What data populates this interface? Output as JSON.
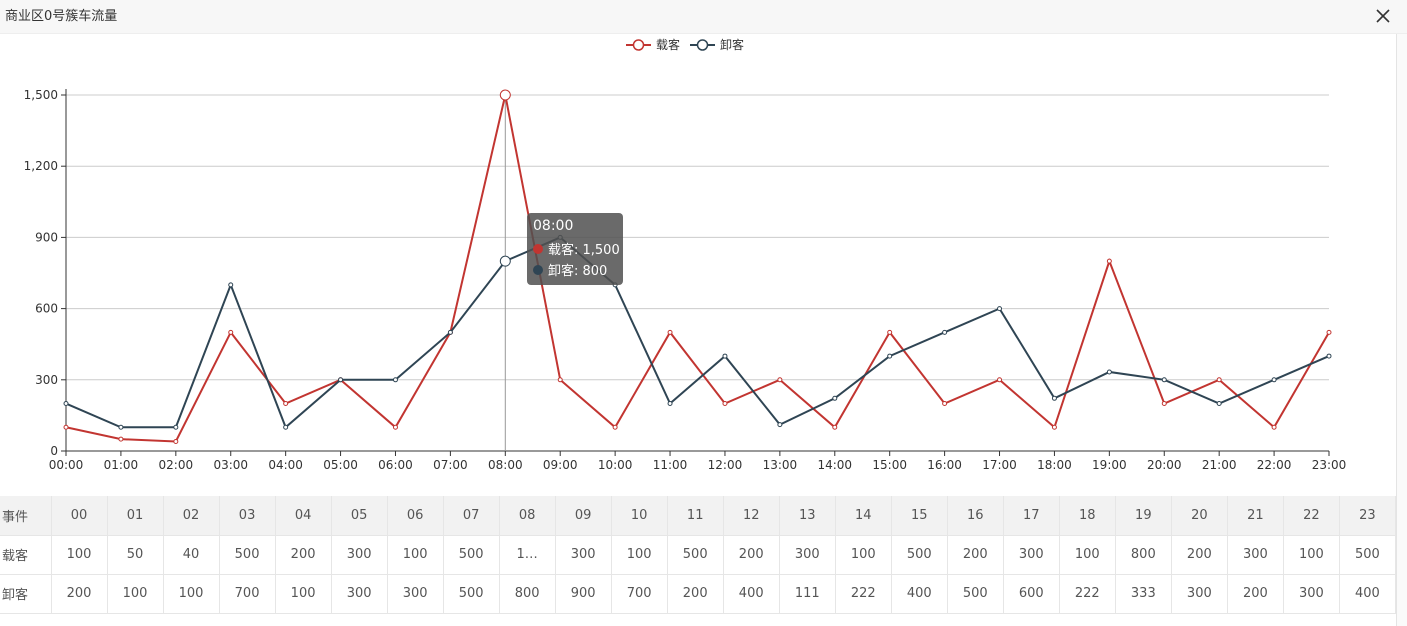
{
  "window": {
    "title": "商业区0号簇车流量",
    "close_icon": "close-icon"
  },
  "chart_data": {
    "type": "line",
    "categories": [
      "00:00",
      "01:00",
      "02:00",
      "03:00",
      "04:00",
      "05:00",
      "06:00",
      "07:00",
      "08:00",
      "09:00",
      "10:00",
      "11:00",
      "12:00",
      "13:00",
      "14:00",
      "15:00",
      "16:00",
      "17:00",
      "18:00",
      "19:00",
      "20:00",
      "21:00",
      "22:00",
      "23:00"
    ],
    "series": [
      {
        "name": "载客",
        "color": "#c23531",
        "values": [
          100,
          50,
          40,
          500,
          200,
          300,
          100,
          500,
          1500,
          300,
          100,
          500,
          200,
          300,
          100,
          500,
          200,
          300,
          100,
          800,
          200,
          300,
          100,
          500
        ]
      },
      {
        "name": "卸客",
        "color": "#2f4554",
        "values": [
          200,
          100,
          100,
          700,
          100,
          300,
          300,
          500,
          800,
          900,
          700,
          200,
          400,
          111,
          222,
          400,
          500,
          600,
          222,
          333,
          300,
          200,
          300,
          400
        ]
      }
    ],
    "ylim": [
      0,
      1500
    ],
    "yticks": [
      0,
      300,
      600,
      900,
      1200,
      1500
    ],
    "ytick_labels": [
      "0",
      "300",
      "600",
      "900",
      "1,200",
      "1,500"
    ],
    "grid": true,
    "legend_position": "top-center",
    "tooltip": {
      "title": "08:00",
      "rows": [
        {
          "label": "载客: 1,500",
          "color": "#c23531"
        },
        {
          "label": "卸客: 800",
          "color": "#2f4554"
        }
      ]
    }
  },
  "table": {
    "rows": [
      {
        "label": "事件",
        "cells": [
          "00",
          "01",
          "02",
          "03",
          "04",
          "05",
          "06",
          "07",
          "08",
          "09",
          "10",
          "11",
          "12",
          "13",
          "14",
          "15",
          "16",
          "17",
          "18",
          "19",
          "20",
          "21",
          "22",
          "23"
        ]
      },
      {
        "label": "载客",
        "cells": [
          "100",
          "50",
          "40",
          "500",
          "200",
          "300",
          "100",
          "500",
          "1…",
          "300",
          "100",
          "500",
          "200",
          "300",
          "100",
          "500",
          "200",
          "300",
          "100",
          "800",
          "200",
          "300",
          "100",
          "500"
        ]
      },
      {
        "label": "卸客",
        "cells": [
          "200",
          "100",
          "100",
          "700",
          "100",
          "300",
          "300",
          "500",
          "800",
          "900",
          "700",
          "200",
          "400",
          "111",
          "222",
          "400",
          "500",
          "600",
          "222",
          "333",
          "300",
          "200",
          "300",
          "400"
        ]
      }
    ]
  }
}
